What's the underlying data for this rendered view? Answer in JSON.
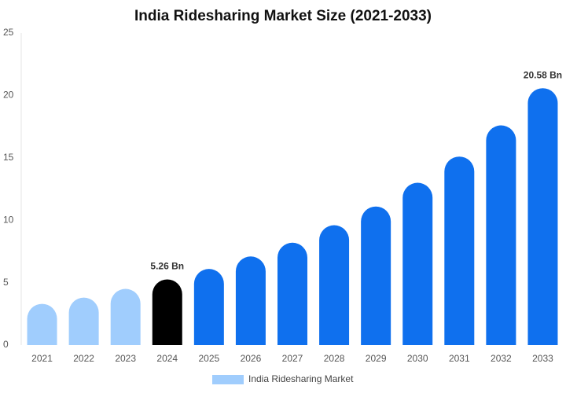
{
  "chart_data": {
    "type": "bar",
    "title": "India Ridesharing Market Size (2021-2033)",
    "categories": [
      "2021",
      "2022",
      "2023",
      "2024",
      "2025",
      "2026",
      "2027",
      "2028",
      "2029",
      "2030",
      "2031",
      "2032",
      "2033"
    ],
    "series": [
      {
        "name": "India Ridesharing Market",
        "color": "#a0cdfd",
        "values": [
          3.3,
          3.8,
          4.5,
          5.26,
          6.1,
          7.1,
          8.2,
          9.6,
          11.1,
          13.0,
          15.1,
          17.6,
          20.58
        ],
        "value_labels": [
          null,
          null,
          null,
          "5.26 Bn",
          null,
          null,
          null,
          null,
          null,
          null,
          null,
          null,
          "20.58 Bn"
        ],
        "colors": [
          "#a0cdfd",
          "#a0cdfd",
          "#a0cdfd",
          "#000000",
          "#0f70ee",
          "#0f70ee",
          "#0f70ee",
          "#0f70ee",
          "#0f70ee",
          "#0f70ee",
          "#0f70ee",
          "#0f70ee",
          "#0f70ee"
        ]
      }
    ],
    "ylim": [
      0,
      25
    ],
    "yticks": [
      0,
      5,
      10,
      15,
      20,
      25
    ],
    "grid": false,
    "legend": "bottom"
  }
}
